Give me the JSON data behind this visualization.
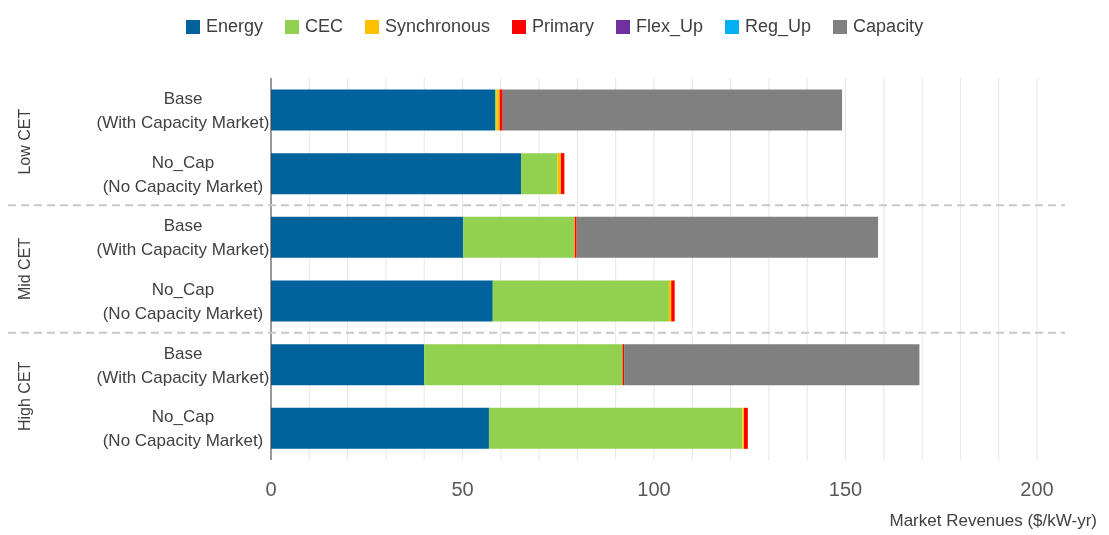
{
  "chart_data": {
    "type": "bar",
    "orientation": "horizontal",
    "stacked": true,
    "categories": [
      "Base\n(With Capacity Market)",
      "No_Cap\n(No Capacity Market)",
      "Base\n(With Capacity Market)",
      "No_Cap\n(No Capacity Market)",
      "Base\n(With Capacity Market)",
      "No_Cap\n(No Capacity Market)"
    ],
    "series": [
      {
        "name": "Energy",
        "color": "#00629b",
        "values": [
          58.5,
          65.3,
          50.2,
          57.9,
          40.0,
          56.9
        ]
      },
      {
        "name": "CEC",
        "color": "#92d050",
        "values": [
          0.4,
          9.5,
          28.9,
          46.0,
          51.8,
          66.2
        ]
      },
      {
        "name": "Synchronous",
        "color": "#ffc000",
        "values": [
          0.8,
          0.9,
          0.2,
          0.6,
          null,
          0.4
        ]
      },
      {
        "name": "Primary",
        "color": "#ff0000",
        "values": [
          0.8,
          0.9,
          0.5,
          0.9,
          0.4,
          1.0
        ]
      },
      {
        "name": "Flex_Up",
        "color": "#7030a0",
        "values": [
          0,
          0,
          0,
          0,
          0,
          0
        ]
      },
      {
        "name": "Reg_Up",
        "color": "#00b0f0",
        "values": [
          0,
          0,
          0,
          0,
          0,
          0
        ]
      },
      {
        "name": "Capacity",
        "color": "#808080",
        "values": [
          88.6,
          0,
          78.7,
          0,
          77.1,
          0
        ]
      }
    ],
    "xlabel": "Market Revenues ($/kW-yr)",
    "xlim": [
      0,
      200
    ],
    "xticks": [
      0,
      {
        "value": 10,
        "label": null
      },
      {
        "value": 20,
        "label": null
      },
      {
        "value": 30,
        "label": null
      },
      {
        "value": 40,
        "label": null
      },
      50,
      {
        "value": 60,
        "label": null
      },
      {
        "value": 70,
        "label": null
      },
      {
        "value": 80,
        "label": null
      },
      {
        "value": 90,
        "label": null
      },
      100,
      {
        "value": 110,
        "label": null
      },
      {
        "value": 120,
        "label": null
      },
      {
        "value": 130,
        "label": null
      },
      {
        "value": 140,
        "label": null
      },
      150,
      {
        "value": 160,
        "label": null
      },
      {
        "value": 170,
        "label": null
      },
      {
        "value": 180,
        "label": null
      },
      {
        "value": 190,
        "label": null
      },
      200
    ],
    "grid": "x",
    "legend": "top",
    "annotations": [
      "Low CET",
      "Mid CET",
      "High CET"
    ]
  }
}
